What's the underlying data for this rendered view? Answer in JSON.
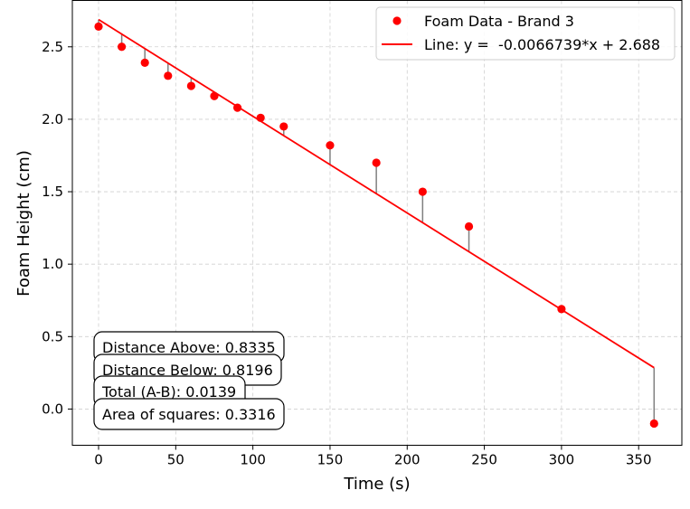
{
  "chart_data": {
    "type": "scatter",
    "xlabel": "Time (s)",
    "ylabel": "Foam Height (cm)",
    "xlim": [
      -17,
      378
    ],
    "ylim": [
      -0.25,
      2.82
    ],
    "x_ticks": [
      0,
      50,
      100,
      150,
      200,
      250,
      300,
      350
    ],
    "x_tick_labels": [
      "0",
      "50",
      "100",
      "150",
      "200",
      "250",
      "300",
      "350"
    ],
    "y_ticks": [
      0.0,
      0.5,
      1.0,
      1.5,
      2.0,
      2.5
    ],
    "y_tick_labels": [
      "0.0",
      "0.5",
      "1.0",
      "1.5",
      "2.0",
      "2.5"
    ],
    "grid": true,
    "legend_position": "top-right",
    "series": [
      {
        "name": "Foam Data - Brand 3",
        "type": "scatter",
        "color": "#ff0000",
        "x": [
          0,
          15,
          30,
          45,
          60,
          75,
          90,
          105,
          120,
          150,
          180,
          210,
          240,
          300,
          360
        ],
        "y": [
          2.64,
          2.5,
          2.39,
          2.3,
          2.23,
          2.16,
          2.08,
          2.01,
          1.95,
          1.82,
          1.7,
          1.5,
          1.26,
          0.69,
          -0.1
        ]
      },
      {
        "name": "Line: y =  -0.0066739*x + 2.688",
        "type": "line",
        "color": "#ff0000",
        "slope": -0.0066739,
        "intercept": 2.688,
        "x_range": [
          0,
          360
        ]
      }
    ],
    "residual_line_color": "#808080",
    "annotations": [
      "Distance Above: 0.8335",
      "Distance Below: 0.8196",
      "Total (A-B): 0.0139",
      "Area of squares: 0.3316"
    ]
  }
}
